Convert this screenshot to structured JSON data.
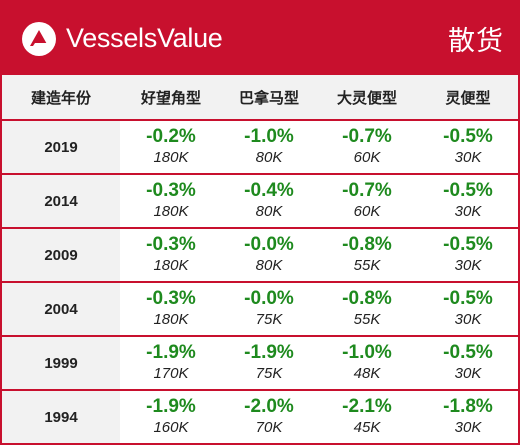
{
  "header": {
    "brand": "VesselsValue",
    "section_title": "散货",
    "logo_icon": "vesselsvalue-logo-icon",
    "brand_color": "#c8102e"
  },
  "table": {
    "columns": [
      "建造年份",
      "好望角型",
      "巴拿马型",
      "大灵便型",
      "灵便型"
    ],
    "rows": [
      {
        "year": "2019",
        "cells": [
          {
            "change": "-0.2%",
            "value": "180K"
          },
          {
            "change": "-1.0%",
            "value": "80K"
          },
          {
            "change": "-0.7%",
            "value": "60K"
          },
          {
            "change": "-0.5%",
            "value": "30K"
          }
        ]
      },
      {
        "year": "2014",
        "cells": [
          {
            "change": "-0.3%",
            "value": "180K"
          },
          {
            "change": "-0.4%",
            "value": "80K"
          },
          {
            "change": "-0.7%",
            "value": "60K"
          },
          {
            "change": "-0.5%",
            "value": "30K"
          }
        ]
      },
      {
        "year": "2009",
        "cells": [
          {
            "change": "-0.3%",
            "value": "180K"
          },
          {
            "change": "-0.0%",
            "value": "80K"
          },
          {
            "change": "-0.8%",
            "value": "55K"
          },
          {
            "change": "-0.5%",
            "value": "30K"
          }
        ]
      },
      {
        "year": "2004",
        "cells": [
          {
            "change": "-0.3%",
            "value": "180K"
          },
          {
            "change": "-0.0%",
            "value": "75K"
          },
          {
            "change": "-0.8%",
            "value": "55K"
          },
          {
            "change": "-0.5%",
            "value": "30K"
          }
        ]
      },
      {
        "year": "1999",
        "cells": [
          {
            "change": "-1.9%",
            "value": "170K"
          },
          {
            "change": "-1.9%",
            "value": "75K"
          },
          {
            "change": "-1.0%",
            "value": "48K"
          },
          {
            "change": "-0.5%",
            "value": "30K"
          }
        ]
      },
      {
        "year": "1994",
        "cells": [
          {
            "change": "-1.9%",
            "value": "160K"
          },
          {
            "change": "-2.0%",
            "value": "70K"
          },
          {
            "change": "-2.1%",
            "value": "45K"
          },
          {
            "change": "-1.8%",
            "value": "30K"
          }
        ]
      }
    ],
    "change_color": "#1e8a1e"
  }
}
